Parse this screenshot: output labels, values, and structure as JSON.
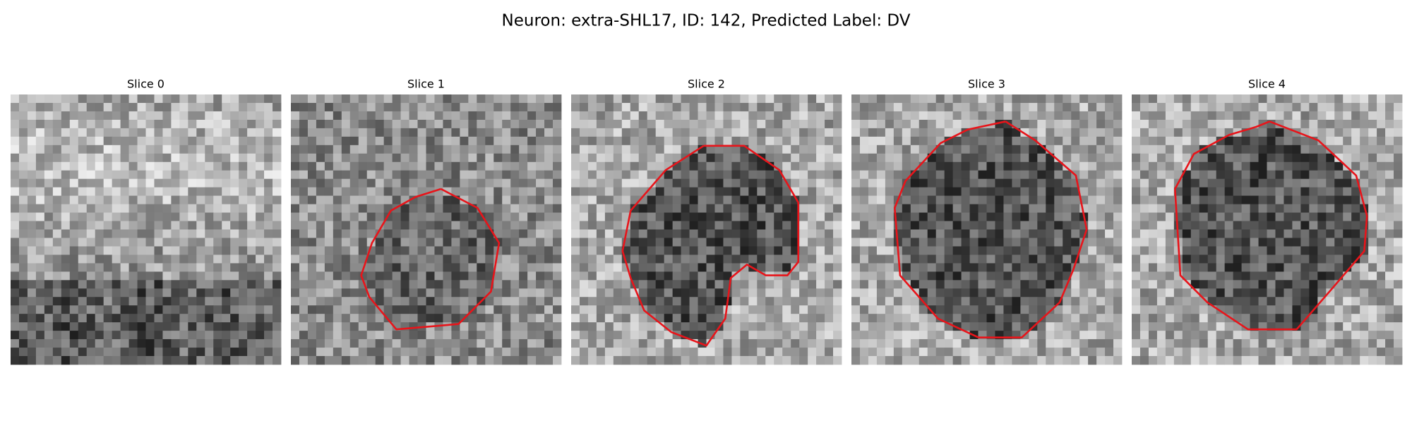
{
  "title": "Neuron: extra-SHL17, ID: 142, Predicted Label: DV",
  "panels": [
    {
      "title": "Slice 0"
    },
    {
      "title": "Slice 1"
    },
    {
      "title": "Slice 2"
    },
    {
      "title": "Slice 3"
    },
    {
      "title": "Slice 4"
    }
  ]
}
